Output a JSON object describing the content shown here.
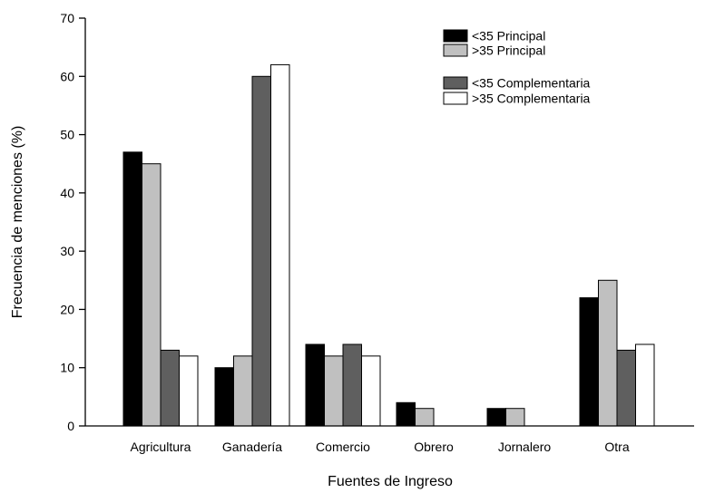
{
  "chart_data": {
    "type": "bar",
    "title": "",
    "xlabel": "Fuentes de Ingreso",
    "ylabel": "Frecuencia de menciones (%)",
    "ylim": [
      0,
      70
    ],
    "yticks": [
      0,
      10,
      20,
      30,
      40,
      50,
      60,
      70
    ],
    "grid": false,
    "legend_position": "top-right",
    "categories": [
      "Agricultura",
      "Ganadería",
      "Comercio",
      "Obrero",
      "Jornalero",
      "Otra"
    ],
    "series": [
      {
        "name": "<35 Principal",
        "color": "#000000",
        "values": [
          47,
          10,
          14,
          4,
          3,
          22
        ]
      },
      {
        "name": ">35 Principal",
        "color": "#c0c0c0",
        "values": [
          45,
          12,
          12,
          3,
          3,
          25
        ]
      },
      {
        "name": "<35 Complementaria",
        "color": "#5f5f5f",
        "values": [
          13,
          60,
          14,
          0,
          0,
          13
        ]
      },
      {
        "name": ">35 Complementaria",
        "color": "#ffffff",
        "values": [
          12,
          62,
          12,
          0,
          0,
          14
        ]
      }
    ]
  }
}
